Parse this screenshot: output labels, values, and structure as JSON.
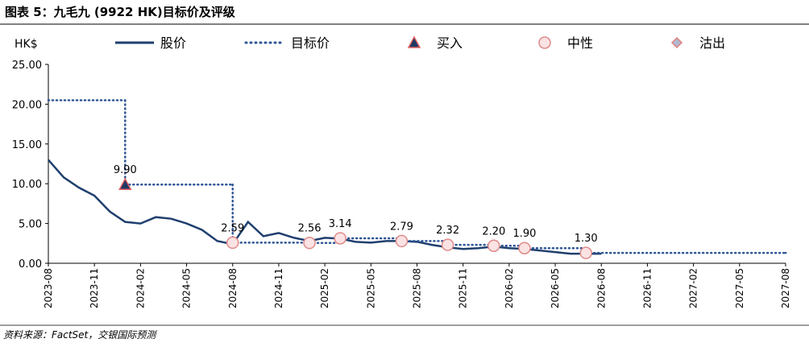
{
  "chart_data": {
    "type": "line",
    "title": "图表 5：九毛九 (9922 HK)目标价及评级",
    "y_label": "HK$",
    "source": "资料来源：FactSet，交银国际预测",
    "xlim": [
      "2023-08",
      "2027-08"
    ],
    "xticks": [
      "2023-08",
      "2023-11",
      "2024-02",
      "2024-05",
      "2024-08",
      "2024-11",
      "2025-02",
      "2025-05",
      "2025-08",
      "2025-11",
      "2026-02",
      "2026-05",
      "2026-08",
      "2026-11",
      "2027-02",
      "2027-05",
      "2027-08"
    ],
    "ylim": [
      0,
      25
    ],
    "yticks": [
      {
        "value": 0,
        "label": "0.00"
      },
      {
        "value": 5,
        "label": "5.00"
      },
      {
        "value": 10,
        "label": "10.00"
      },
      {
        "value": 15,
        "label": "15.00"
      },
      {
        "value": 20,
        "label": "20.00"
      },
      {
        "value": 25,
        "label": "25.00"
      }
    ],
    "series": [
      {
        "name": "股价",
        "color": "#1f3f6e",
        "style": "solid",
        "x": [
          "2023-08",
          "2023-09",
          "2023-10",
          "2023-11",
          "2023-12",
          "2024-01",
          "2024-02",
          "2024-03",
          "2024-04",
          "2024-05",
          "2024-06",
          "2024-07",
          "2024-08",
          "2024-09",
          "2024-10",
          "2024-11",
          "2024-12",
          "2025-01",
          "2025-02",
          "2025-03",
          "2025-04",
          "2025-05",
          "2025-06",
          "2025-07",
          "2025-08",
          "2025-09",
          "2025-10",
          "2025-11",
          "2025-12",
          "2026-01",
          "2026-02",
          "2026-03",
          "2026-04",
          "2026-05",
          "2026-06",
          "2026-07",
          "2026-08"
        ],
        "values": [
          13.0,
          10.8,
          9.5,
          8.5,
          6.5,
          5.2,
          5.0,
          5.8,
          5.6,
          5.0,
          4.2,
          2.8,
          2.4,
          5.2,
          3.4,
          3.8,
          3.2,
          2.8,
          3.2,
          3.1,
          2.7,
          2.6,
          2.8,
          2.8,
          2.7,
          2.3,
          2.0,
          1.8,
          1.9,
          2.1,
          1.9,
          1.8,
          1.6,
          1.4,
          1.2,
          1.2,
          1.2
        ]
      },
      {
        "name": "目标价",
        "color": "#2e5597",
        "style": "dotted-step",
        "x": [
          "2023-08",
          "2024-01",
          "2024-08",
          "2025-01",
          "2025-03",
          "2025-07",
          "2025-10",
          "2026-01",
          "2026-03",
          "2026-07",
          "2027-08"
        ],
        "values": [
          20.5,
          9.9,
          2.59,
          2.56,
          3.14,
          2.79,
          2.32,
          2.2,
          1.9,
          1.3,
          1.3
        ]
      },
      {
        "name": "买入",
        "color": "#1f3864",
        "stroke": "#e06060",
        "marker": "triangle",
        "x": [
          "2024-01"
        ],
        "values": [
          9.9
        ],
        "value_labels": [
          "9.90"
        ]
      },
      {
        "name": "中性",
        "color": "#fbe3e3",
        "stroke": "#e08a8a",
        "marker": "circle",
        "x": [
          "2024-08",
          "2025-01",
          "2025-03",
          "2025-07",
          "2025-10",
          "2026-01",
          "2026-03",
          "2026-07"
        ],
        "values": [
          2.59,
          2.56,
          3.14,
          2.79,
          2.32,
          2.2,
          1.9,
          1.3
        ],
        "value_labels": [
          "2.59",
          "2.56",
          "3.14",
          "2.79",
          "2.32",
          "2.20",
          "1.90",
          "1.30"
        ]
      },
      {
        "name": "沽出",
        "color": "#b0b8d0",
        "stroke": "#e08080",
        "marker": "diamond",
        "x": [],
        "values": []
      }
    ]
  }
}
